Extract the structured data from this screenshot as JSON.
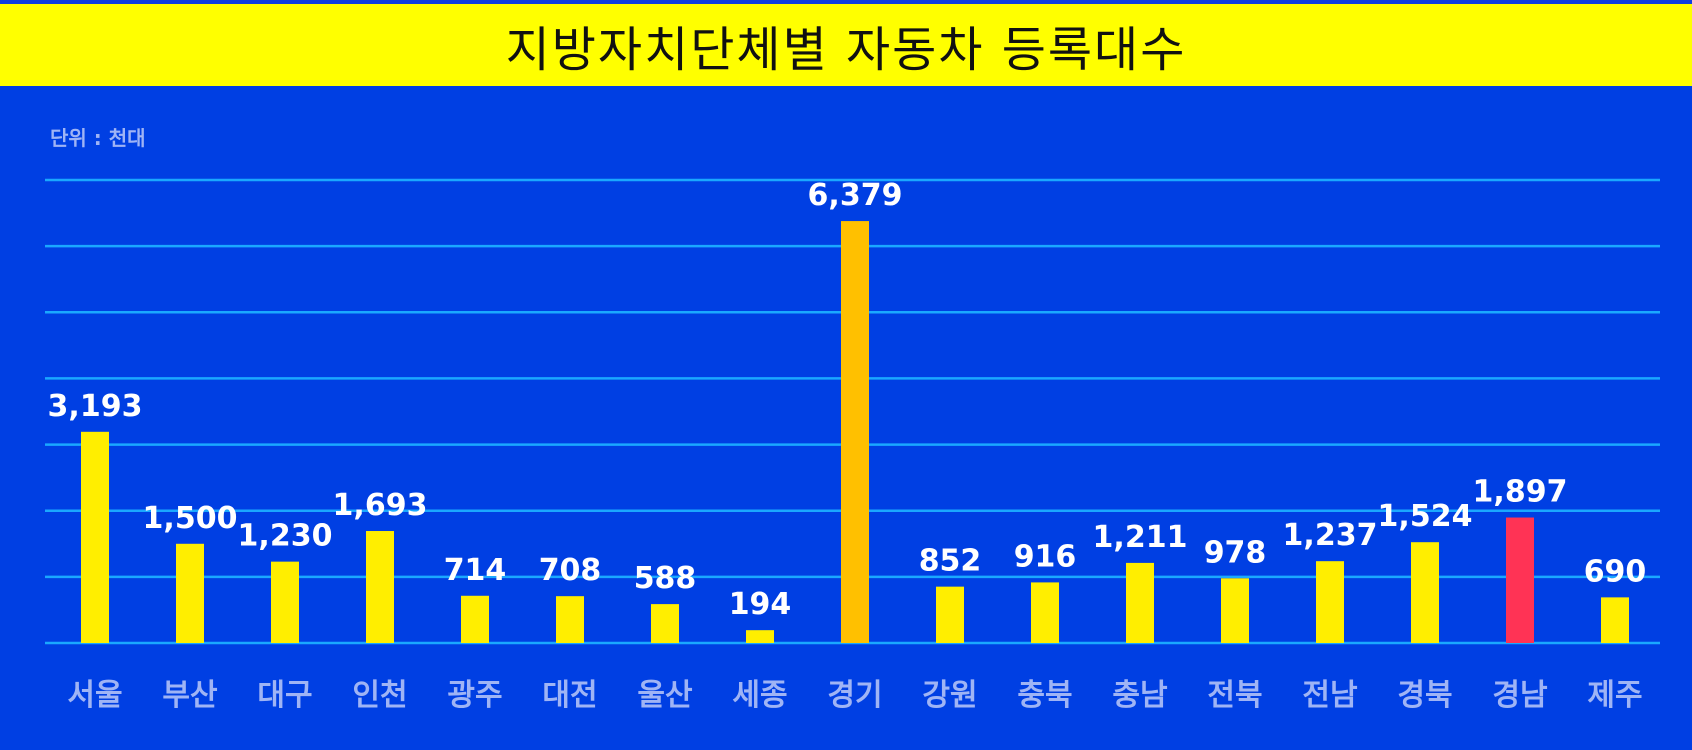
{
  "title": "지방자치단체별 자동차 등록대수",
  "unit_label": "단위 : 천대",
  "colors": {
    "background": "#003fe3",
    "title_bar": "#ffff00",
    "gridline": "#1aa8ff",
    "bar_default": "#ffee00",
    "bar_max": "#ffc000",
    "bar_highlight": "#ff3355",
    "value_label": "#ffffff",
    "category_label": "#9fb4f5"
  },
  "chart_data": {
    "type": "bar",
    "title": "지방자치단체별 자동차 등록대수",
    "unit": "단위 : 천대",
    "categories": [
      "서울",
      "부산",
      "대구",
      "인천",
      "광주",
      "대전",
      "울산",
      "세종",
      "경기",
      "강원",
      "충북",
      "충남",
      "전북",
      "전남",
      "경북",
      "경남",
      "제주"
    ],
    "values": [
      3193,
      1500,
      1230,
      1693,
      714,
      708,
      588,
      194,
      6379,
      852,
      916,
      1211,
      978,
      1237,
      1524,
      1897,
      690
    ],
    "value_labels": [
      "3,193",
      "1,500",
      "1,230",
      "1,693",
      "714",
      "708",
      "588",
      "194",
      "6,379",
      "852",
      "916",
      "1,211",
      "978",
      "1,237",
      "1,524",
      "1,897",
      "690"
    ],
    "highlight": {
      "경기": "bar_max",
      "경남": "bar_highlight"
    },
    "ylim": [
      0,
      7000
    ],
    "grid": true,
    "legend": "none"
  }
}
